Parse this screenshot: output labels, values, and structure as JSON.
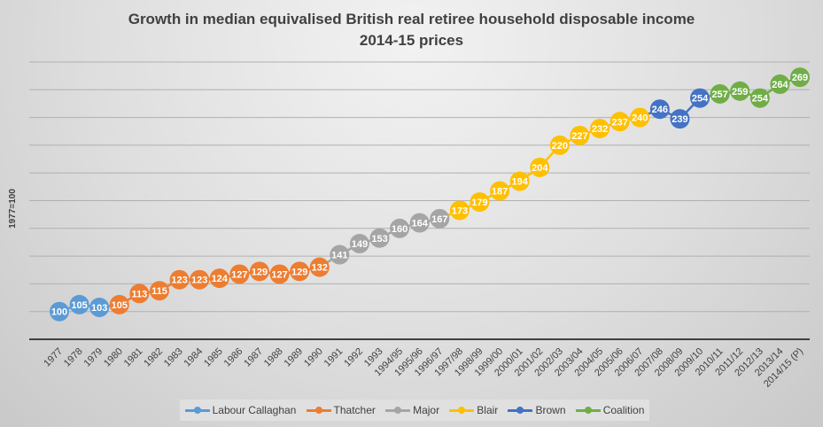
{
  "chart_data": {
    "type": "line",
    "title": "Growth in median equivalised British real retiree household disposable income",
    "subtitle": "2014-15 prices",
    "ylabel": "1977=100",
    "xlabel": "",
    "ylim": [
      80,
      280
    ],
    "grid": true,
    "legend_position": "bottom",
    "categories": [
      "1977",
      "1978",
      "1979",
      "1980",
      "1981",
      "1982",
      "1983",
      "1984",
      "1985",
      "1986",
      "1987",
      "1988",
      "1989",
      "1990",
      "1991",
      "1992",
      "1993",
      "1994/95",
      "1995/96",
      "1996/97",
      "1997/98",
      "1998/99",
      "1999/00",
      "2000/01",
      "2001/02",
      "2002/03",
      "2003/04",
      "2004/05",
      "2005/06",
      "2006/07",
      "2007/08",
      "2008/09",
      "2009/10",
      "2010/11",
      "2011/12",
      "2012/13",
      "2013/14",
      "2014/15 (P)"
    ],
    "values": [
      100,
      105,
      103,
      105,
      113,
      115,
      123,
      123,
      124,
      127,
      129,
      127,
      129,
      132,
      141,
      149,
      153,
      160,
      164,
      167,
      173,
      179,
      187,
      194,
      204,
      220,
      227,
      232,
      237,
      240,
      246,
      239,
      254,
      257,
      259,
      254,
      264,
      269
    ],
    "series": [
      {
        "name": "Labour Callaghan",
        "color": "#5B9BD5",
        "start": 0,
        "end": 2
      },
      {
        "name": "Thatcher",
        "color": "#ED7D31",
        "start": 3,
        "end": 13
      },
      {
        "name": "Major",
        "color": "#A5A5A5",
        "start": 14,
        "end": 19
      },
      {
        "name": "Blair",
        "color": "#FFC000",
        "start": 20,
        "end": 29
      },
      {
        "name": "Brown",
        "color": "#4472C4",
        "start": 30,
        "end": 32
      },
      {
        "name": "Coalition",
        "color": "#70AD47",
        "start": 33,
        "end": 37
      }
    ]
  }
}
